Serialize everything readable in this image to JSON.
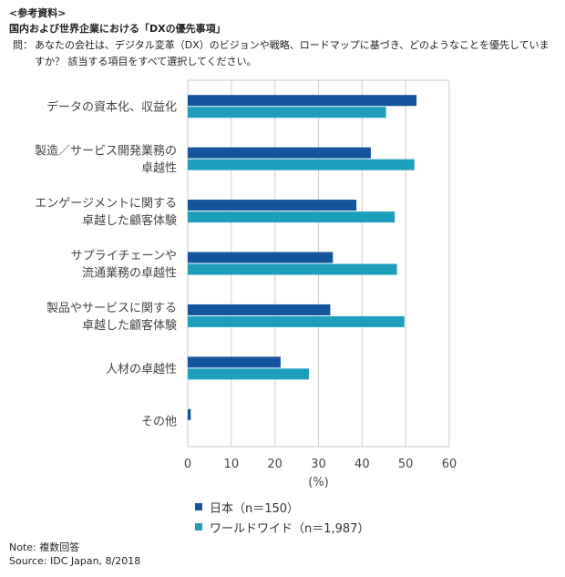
{
  "header": {
    "ref_label": "<参考資料>",
    "title": "国内および世界企業における「DXの優先事項」",
    "question_prefix": "問：",
    "question": "あなたの会社は、デジタル変革（DX）のビジョンや戦略、ロードマップに基づき、どのようなことを優先していますか？ 該当する項目をすべて選択してください。"
  },
  "chart_data": {
    "type": "bar",
    "orientation": "horizontal",
    "categories": [
      [
        "データの資本化、収益化"
      ],
      [
        "製造／サービス開発業務の",
        "卓越性"
      ],
      [
        "エンゲージメントに関する",
        "卓越した顧客体験"
      ],
      [
        "サプライチェーンや",
        "流通業務の卓越性"
      ],
      [
        "製品やサービスに関する",
        "卓越した顧客体験"
      ],
      [
        "人材の卓越性"
      ],
      [
        "その他"
      ]
    ],
    "series": [
      {
        "name": "日本（n＝150）",
        "color": "#14549b",
        "values": [
          52.5,
          42.0,
          38.7,
          33.3,
          32.7,
          21.3,
          0.7
        ]
      },
      {
        "name": "ワールドワイド（n＝1,987）",
        "color": "#1d9fbc",
        "values": [
          45.5,
          52.0,
          47.5,
          48.0,
          49.7,
          27.8,
          0.0
        ]
      }
    ],
    "xlim": [
      0,
      60
    ],
    "xticks": [
      "0",
      "10",
      "20",
      "30",
      "40",
      "50",
      "60"
    ],
    "xlabel": "(%)",
    "legend_position": "bottom",
    "grid": true
  },
  "footer": {
    "note": "Note: 複数回答",
    "source": "Source: IDC Japan, 8/2018"
  }
}
